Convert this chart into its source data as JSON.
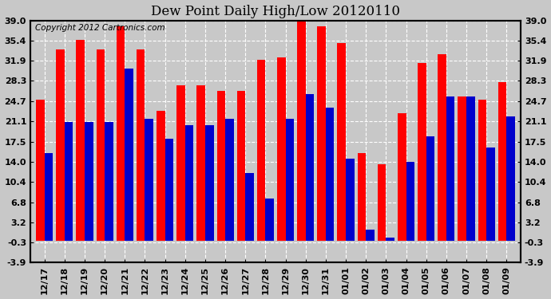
{
  "title": "Dew Point Daily High/Low 20120110",
  "copyright": "Copyright 2012 Cartronics.com",
  "dates": [
    "12/17",
    "12/18",
    "12/19",
    "12/20",
    "12/21",
    "12/22",
    "12/23",
    "12/24",
    "12/25",
    "12/26",
    "12/27",
    "12/28",
    "12/29",
    "12/30",
    "12/31",
    "01/01",
    "01/02",
    "01/03",
    "01/04",
    "01/05",
    "01/06",
    "01/07",
    "01/08",
    "01/09"
  ],
  "high": [
    25.0,
    33.8,
    35.6,
    33.8,
    38.0,
    33.8,
    23.0,
    27.5,
    27.5,
    26.5,
    26.5,
    32.0,
    32.5,
    39.2,
    38.0,
    35.0,
    15.5,
    13.5,
    22.5,
    31.5,
    33.0,
    25.5,
    25.0,
    28.0
  ],
  "low": [
    15.5,
    21.0,
    21.0,
    21.0,
    30.5,
    21.5,
    18.0,
    20.5,
    20.5,
    21.5,
    12.0,
    7.5,
    21.5,
    26.0,
    23.5,
    14.5,
    2.0,
    0.5,
    14.0,
    18.5,
    25.5,
    25.5,
    16.5,
    22.0
  ],
  "high_color": "#ff0000",
  "low_color": "#0000cc",
  "ylim_min": -3.9,
  "ylim_max": 39.0,
  "yticks": [
    -3.9,
    -0.3,
    3.2,
    6.8,
    10.4,
    14.0,
    17.5,
    21.1,
    24.7,
    28.3,
    31.9,
    35.4,
    39.0
  ],
  "bg_color": "#c8c8c8",
  "plot_bg_color": "#c8c8c8",
  "grid_color": "white",
  "border_color": "#000000",
  "title_fontsize": 12,
  "label_fontsize": 8,
  "copyright_fontsize": 7.5
}
